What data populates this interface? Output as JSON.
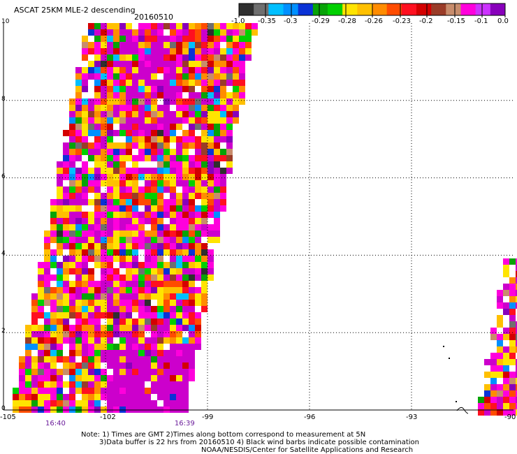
{
  "header": {
    "title": "ASCAT 25KM MLE-2 descending",
    "date": "20160510"
  },
  "colorbar": {
    "colors": [
      "#2f2f2f",
      "#6f6f6f",
      "#00bfff",
      "#0090ff",
      "#0a32d6",
      "#07a307",
      "#00d000",
      "#ffe400",
      "#ffc000",
      "#ff8c00",
      "#ff4c00",
      "#ff1020",
      "#d40000",
      "#9a3c28",
      "#c88c6c",
      "#ff00dc",
      "#cc33ff",
      "#8800bb"
    ],
    "tick_labels": [
      "-1.0",
      "-0.35",
      "-0.3",
      "-0.29",
      "-0.28",
      "-0.26",
      "-0.23",
      "-0.2",
      "-0.15",
      "-0.1",
      "0.0"
    ]
  },
  "axes": {
    "x_ticks": [
      "-105",
      "-102",
      "-99",
      "-96",
      "-93",
      "-90"
    ],
    "y_ticks": [
      "0",
      "2",
      "4",
      "6",
      "8",
      "10"
    ],
    "x_range": [
      -105,
      -90
    ],
    "y_range": [
      0,
      10
    ]
  },
  "time_labels": [
    {
      "text": "16:40",
      "lon": -103.5
    },
    {
      "text": "16:39",
      "lon": -99.7
    }
  ],
  "footer": {
    "line1": "Note: 1) Times are GMT 2)Times along bottom correspond to measurement at 5N",
    "line2": "3)Data buffer is 22 hrs from 20160510 4) Black wind barbs indicate possible contamination",
    "line3": "NOAA/NESDIS/Center for Satellite Applications and Research"
  }
}
